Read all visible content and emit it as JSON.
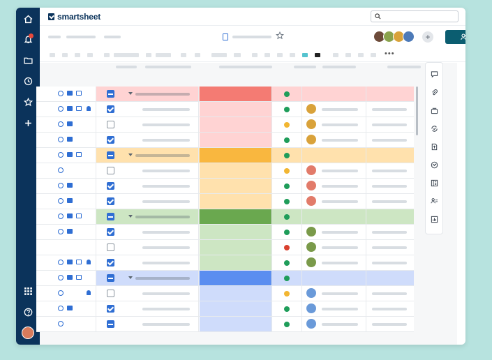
{
  "app": {
    "brand": "smartsheet"
  },
  "colors": {
    "nav_bg": "#0b335b",
    "accent_blue": "#2f6ed3",
    "share_button": "#0b5d70",
    "status_green": "#1f9d5a",
    "status_yellow": "#f2b632",
    "status_red": "#d9412f"
  },
  "left_nav": {
    "icons": [
      "home-icon",
      "bell-icon",
      "folder-icon",
      "clock-icon",
      "star-icon",
      "plus-icon",
      "apps-grid-icon",
      "help-icon"
    ],
    "notification_badge": true
  },
  "right_panel": {
    "icons": [
      "comment-icon",
      "attachment-icon",
      "proofing-icon",
      "update-request-icon",
      "publish-icon",
      "activity-icon",
      "summary-icon",
      "people-icon",
      "report-icon"
    ]
  },
  "rows": [
    {
      "type": "parent",
      "tint": "#ffd3d3",
      "color": "#f47b73",
      "status": "green",
      "icons": [
        "at",
        "cmt",
        "att"
      ],
      "cb": "partial"
    },
    {
      "type": "child",
      "tint": "#ffd3d3",
      "status": "green",
      "icons": [
        "at",
        "cmt",
        "att",
        "bell"
      ],
      "cb": "checked",
      "avatar": "#d9a23a"
    },
    {
      "type": "child",
      "tint": "#ffd3d3",
      "status": "yellow",
      "icons": [
        "at",
        "cmt"
      ],
      "cb": "empty",
      "avatar": "#d9a23a"
    },
    {
      "type": "child",
      "tint": "#ffd3d3",
      "status": "green",
      "icons": [
        "at",
        "cmt"
      ],
      "cb": "checked",
      "avatar": "#d9a23a"
    },
    {
      "type": "parent",
      "tint": "#ffe1ad",
      "color": "#f9b73f",
      "status": "green",
      "icons": [
        "at",
        "cmt",
        "att"
      ],
      "cb": "partial"
    },
    {
      "type": "child",
      "tint": "#ffe1ad",
      "status": "yellow",
      "icons": [
        "at"
      ],
      "cb": "empty",
      "avatar": "#e27b6a"
    },
    {
      "type": "child",
      "tint": "#ffe1ad",
      "status": "green",
      "icons": [
        "at",
        "cmt"
      ],
      "cb": "checked",
      "avatar": "#e27b6a"
    },
    {
      "type": "child",
      "tint": "#ffe1ad",
      "status": "green",
      "icons": [
        "at",
        "cmt"
      ],
      "cb": "checked",
      "avatar": "#e27b6a"
    },
    {
      "type": "parent",
      "tint": "#cde6c3",
      "color": "#6aa84f",
      "status": "green",
      "icons": [
        "at",
        "cmt",
        "att"
      ],
      "cb": "partial"
    },
    {
      "type": "child",
      "tint": "#cde6c3",
      "status": "green",
      "icons": [
        "at",
        "cmt"
      ],
      "cb": "checked",
      "avatar": "#7a9a4a"
    },
    {
      "type": "child",
      "tint": "#cde6c3",
      "status": "red",
      "icons": [],
      "cb": "empty",
      "avatar": "#7a9a4a"
    },
    {
      "type": "child",
      "tint": "#cde6c3",
      "status": "green",
      "icons": [
        "at",
        "cmt",
        "att",
        "bell"
      ],
      "cb": "checked",
      "avatar": "#7a9a4a"
    },
    {
      "type": "parent",
      "tint": "#cfdcfb",
      "color": "#5b8ef0",
      "status": "green",
      "icons": [
        "at",
        "cmt",
        "att"
      ],
      "cb": "partial"
    },
    {
      "type": "child",
      "tint": "#cfdcfb",
      "status": "yellow",
      "icons": [
        "at",
        "bell"
      ],
      "cb": "empty",
      "avatar": "#6a9ad9"
    },
    {
      "type": "child",
      "tint": "#cfdcfb",
      "status": "green",
      "icons": [
        "at",
        "cmt"
      ],
      "cb": "checked",
      "avatar": "#6a9ad9"
    },
    {
      "type": "child",
      "tint": "#cfdcfb",
      "status": "green",
      "icons": [
        "at"
      ],
      "cb": "partial",
      "avatar": "#6a9ad9"
    }
  ]
}
